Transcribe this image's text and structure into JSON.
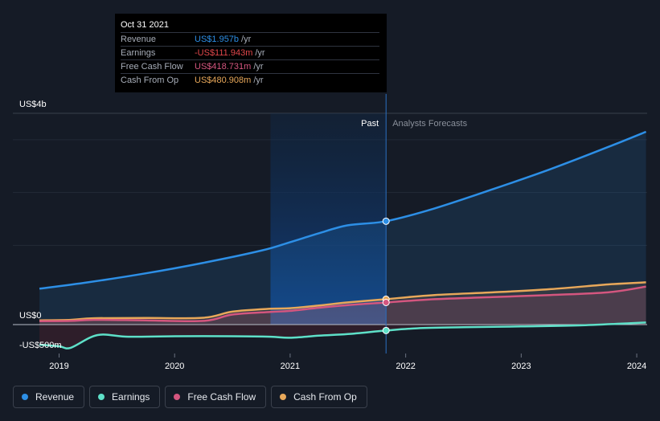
{
  "tooltip": {
    "date": "Oct 31 2021",
    "rows": [
      {
        "label": "Revenue",
        "value": "US$1.957b",
        "unit": "/yr",
        "color": "#2d8fe6"
      },
      {
        "label": "Earnings",
        "value": "-US$111.943m",
        "unit": "/yr",
        "color": "#e2474b"
      },
      {
        "label": "Free Cash Flow",
        "value": "US$418.731m",
        "unit": "/yr",
        "color": "#d4567f"
      },
      {
        "label": "Cash From Op",
        "value": "US$480.908m",
        "unit": "/yr",
        "color": "#e8a85a"
      }
    ]
  },
  "regions": {
    "past": "Past",
    "forecast": "Analysts Forecasts"
  },
  "legend": [
    {
      "label": "Revenue",
      "color": "#2d8fe6"
    },
    {
      "label": "Earnings",
      "color": "#5ee0c8"
    },
    {
      "label": "Free Cash Flow",
      "color": "#d4567f"
    },
    {
      "label": "Cash From Op",
      "color": "#e8a85a"
    }
  ],
  "chart_data": {
    "type": "line",
    "y_tick_labels": [
      "US$4b",
      "US$0",
      "-US$500m"
    ],
    "x_tick_labels": [
      "2019",
      "2020",
      "2021",
      "2022",
      "2023",
      "2024"
    ],
    "ylim": [
      -500,
      4000
    ],
    "xlim": [
      2018.6,
      2024.09
    ],
    "divider_x": 2021.83,
    "highlight_start_x": 2020.83,
    "series": [
      {
        "name": "Revenue",
        "color": "#2d8fe6",
        "x": [
          2018.83,
          2019.25,
          2019.75,
          2020.25,
          2020.75,
          2021.0,
          2021.25,
          2021.5,
          2021.83,
          2022.25,
          2022.75,
          2023.25,
          2023.75,
          2024.08
        ],
        "y": [
          680,
          800,
          970,
          1170,
          1400,
          1560,
          1730,
          1880,
          1957,
          2200,
          2560,
          2940,
          3360,
          3650
        ]
      },
      {
        "name": "Earnings",
        "color": "#5ee0c8",
        "x": [
          2018.83,
          2019.0,
          2019.1,
          2019.33,
          2019.6,
          2020.0,
          2020.5,
          2020.83,
          2021.0,
          2021.25,
          2021.5,
          2021.83,
          2022.1,
          2022.5,
          2023.0,
          2023.5,
          2024.08
        ],
        "y": [
          -380,
          -410,
          -440,
          -200,
          -230,
          -220,
          -220,
          -230,
          -250,
          -210,
          -180,
          -112,
          -70,
          -50,
          -35,
          -15,
          40
        ]
      },
      {
        "name": "Free Cash Flow",
        "color": "#d4567f",
        "x": [
          2018.83,
          2019.1,
          2019.3,
          2019.75,
          2020.25,
          2020.5,
          2020.83,
          2021.0,
          2021.25,
          2021.5,
          2021.83,
          2022.25,
          2022.75,
          2023.25,
          2023.75,
          2024.08
        ],
        "y": [
          65,
          70,
          90,
          80,
          70,
          190,
          240,
          260,
          320,
          370,
          419,
          480,
          520,
          560,
          610,
          720
        ]
      },
      {
        "name": "Cash From Op",
        "color": "#e8a85a",
        "x": [
          2018.83,
          2019.1,
          2019.3,
          2019.75,
          2020.25,
          2020.5,
          2020.83,
          2021.0,
          2021.25,
          2021.5,
          2021.83,
          2022.25,
          2022.75,
          2023.25,
          2023.75,
          2024.08
        ],
        "y": [
          80,
          90,
          120,
          125,
          130,
          245,
          300,
          310,
          360,
          420,
          481,
          560,
          610,
          670,
          760,
          800
        ]
      }
    ]
  }
}
